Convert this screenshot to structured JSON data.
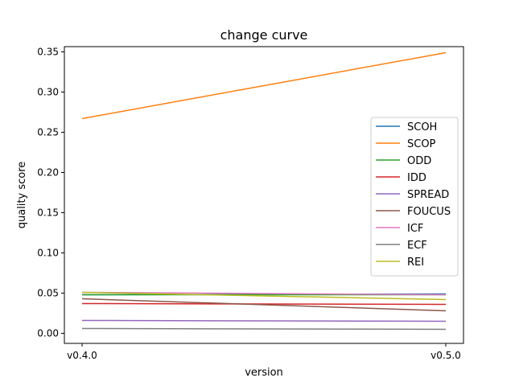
{
  "chart_data": {
    "type": "line",
    "title": "change curve",
    "xlabel": "version",
    "ylabel": "quality score",
    "x": [
      "v0.4.0",
      "v0.5.0"
    ],
    "ylim": [
      -0.0125,
      0.3565
    ],
    "yticks": [
      "0.00",
      "0.05",
      "0.10",
      "0.15",
      "0.20",
      "0.25",
      "0.30",
      "0.35"
    ],
    "ytick_values": [
      0.0,
      0.05,
      0.1,
      0.15,
      0.2,
      0.25,
      0.3,
      0.35
    ],
    "grid": false,
    "legend_position": "center-right",
    "series": [
      {
        "name": "SCOH",
        "color": "#1f77b4",
        "values": [
          0.048,
          0.049
        ]
      },
      {
        "name": "SCOP",
        "color": "#ff7f0e",
        "values": [
          0.267,
          0.349
        ]
      },
      {
        "name": "ODD",
        "color": "#2ca02c",
        "values": [
          0.048,
          0.048
        ]
      },
      {
        "name": "IDD",
        "color": "#d62728",
        "values": [
          0.037,
          0.036
        ]
      },
      {
        "name": "SPREAD",
        "color": "#9467bd",
        "values": [
          0.016,
          0.015
        ]
      },
      {
        "name": "FOUCUS",
        "color": "#8c564b",
        "values": [
          0.043,
          0.028
        ]
      },
      {
        "name": "ICF",
        "color": "#e377c2",
        "values": [
          0.051,
          0.048
        ]
      },
      {
        "name": "ECF",
        "color": "#7f7f7f",
        "values": [
          0.006,
          0.005
        ]
      },
      {
        "name": "REI",
        "color": "#bcbd22",
        "values": [
          0.051,
          0.042
        ]
      }
    ]
  }
}
